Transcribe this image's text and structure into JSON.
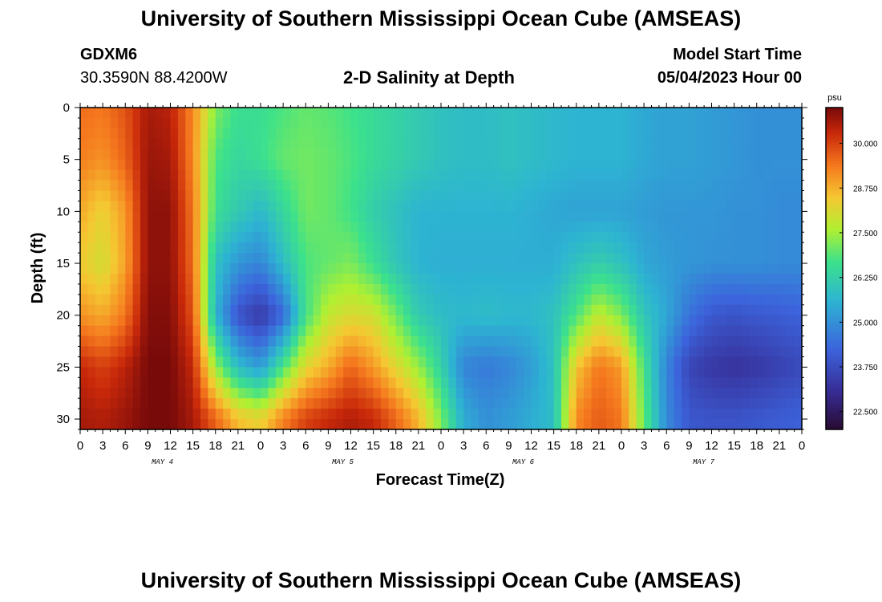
{
  "page": {
    "title_top": "University of Southern Mississippi Ocean Cube (AMSEAS)",
    "title_bottom": "University of Southern Mississippi Ocean Cube (AMSEAS)",
    "station_id": "GDXM6",
    "station_coords": "30.3590N  88.4200W",
    "model_start_label": "Model Start Time",
    "model_start_value": "05/04/2023 Hour 00"
  },
  "chart_data": {
    "type": "heatmap",
    "title": "2-D Salinity at Depth",
    "xlabel": "Forecast Time(Z)",
    "ylabel": "Depth (ft)",
    "x_hours_range": [
      0,
      96
    ],
    "ylim": [
      0,
      31
    ],
    "y_ticks": [
      0,
      5,
      10,
      15,
      20,
      25,
      30
    ],
    "x_tick_labels": [
      "0",
      "3",
      "6",
      "9",
      "12",
      "15",
      "18",
      "21",
      "0",
      "3",
      "6",
      "9",
      "12",
      "15",
      "18",
      "21",
      "0",
      "3",
      "6",
      "9",
      "12",
      "15",
      "18",
      "21",
      "0",
      "3",
      "6",
      "9",
      "12",
      "15",
      "18",
      "21",
      "0"
    ],
    "day_labels": [
      {
        "label": "MAY 4",
        "hour": 12
      },
      {
        "label": "MAY 5",
        "hour": 36
      },
      {
        "label": "MAY 6",
        "hour": 60
      },
      {
        "label": "MAY 7",
        "hour": 84
      }
    ],
    "colorbar": {
      "unit": "psu",
      "min": 22.0,
      "max": 31.0,
      "ticks": [
        "30.000",
        "28.750",
        "27.500",
        "26.250",
        "25.000",
        "23.750",
        "22.500"
      ],
      "tick_values": [
        30.0,
        28.75,
        27.5,
        26.25,
        25.0,
        23.75,
        22.5
      ]
    },
    "salinity_field_psu": {
      "hours": [
        0,
        3,
        6,
        9,
        12,
        15,
        18,
        21,
        24,
        27,
        30,
        33,
        36,
        39,
        42,
        45,
        48,
        51,
        54,
        57,
        60,
        63,
        66,
        69,
        72,
        75,
        78,
        81,
        84,
        87,
        90,
        93,
        96
      ],
      "depths_ft": [
        0,
        5,
        10,
        15,
        20,
        25,
        30
      ],
      "rows": [
        [
          29.5,
          29.4,
          29.8,
          30.6,
          30.4,
          29.2,
          27.2,
          26.6,
          26.6,
          26.8,
          27.0,
          26.9,
          26.7,
          26.5,
          26.3,
          26.1,
          25.9,
          25.8,
          25.8,
          25.9,
          25.8,
          25.7,
          25.6,
          25.6,
          25.6,
          25.4,
          25.3,
          25.3,
          25.2,
          25.1,
          25.0,
          25.0,
          25.0
        ],
        [
          29.3,
          29.1,
          29.6,
          30.7,
          30.6,
          29.2,
          26.8,
          26.4,
          26.6,
          27.0,
          27.1,
          27.0,
          26.8,
          26.5,
          26.3,
          26.1,
          25.9,
          25.8,
          25.8,
          25.9,
          25.8,
          25.7,
          25.6,
          25.6,
          25.6,
          25.4,
          25.3,
          25.3,
          25.2,
          25.1,
          25.0,
          25.0,
          25.0
        ],
        [
          28.8,
          28.3,
          29.0,
          30.8,
          30.8,
          29.4,
          26.6,
          26.1,
          25.7,
          26.4,
          27.1,
          27.0,
          26.7,
          26.2,
          25.9,
          25.6,
          25.6,
          25.6,
          25.6,
          25.6,
          25.5,
          25.4,
          25.3,
          25.3,
          25.3,
          25.2,
          25.1,
          25.1,
          25.1,
          25.0,
          25.0,
          24.9,
          24.9
        ],
        [
          28.4,
          28.0,
          28.9,
          30.8,
          30.8,
          29.5,
          25.9,
          25.1,
          24.8,
          25.8,
          26.8,
          27.0,
          27.2,
          26.6,
          26.0,
          25.6,
          25.5,
          25.5,
          25.5,
          25.5,
          25.5,
          25.5,
          25.9,
          26.2,
          25.9,
          25.4,
          25.2,
          25.1,
          25.0,
          25.0,
          25.0,
          24.9,
          24.9
        ],
        [
          29.1,
          28.8,
          29.4,
          30.9,
          30.9,
          29.8,
          25.6,
          23.9,
          23.3,
          24.3,
          26.7,
          27.8,
          28.1,
          28.0,
          27.1,
          26.1,
          25.8,
          25.7,
          25.8,
          25.7,
          25.7,
          25.9,
          26.8,
          27.8,
          27.2,
          26.0,
          25.4,
          24.5,
          24.0,
          23.9,
          24.0,
          24.1,
          24.2
        ],
        [
          30.3,
          30.0,
          30.4,
          31.0,
          31.0,
          30.3,
          27.4,
          25.8,
          25.2,
          26.8,
          28.2,
          28.8,
          29.6,
          29.0,
          28.2,
          27.4,
          26.3,
          24.8,
          24.6,
          24.8,
          25.2,
          25.9,
          28.5,
          29.4,
          29.0,
          26.7,
          24.8,
          23.6,
          23.3,
          23.2,
          23.3,
          23.5,
          23.7
        ],
        [
          30.6,
          30.5,
          30.7,
          31.0,
          31.0,
          30.6,
          29.6,
          28.6,
          28.3,
          29.3,
          30.0,
          30.3,
          30.5,
          30.3,
          29.6,
          28.7,
          27.2,
          25.5,
          25.0,
          25.2,
          25.5,
          25.8,
          29.2,
          29.7,
          29.4,
          27.0,
          24.9,
          24.0,
          23.9,
          23.9,
          24.0,
          24.1,
          24.2
        ]
      ]
    }
  }
}
